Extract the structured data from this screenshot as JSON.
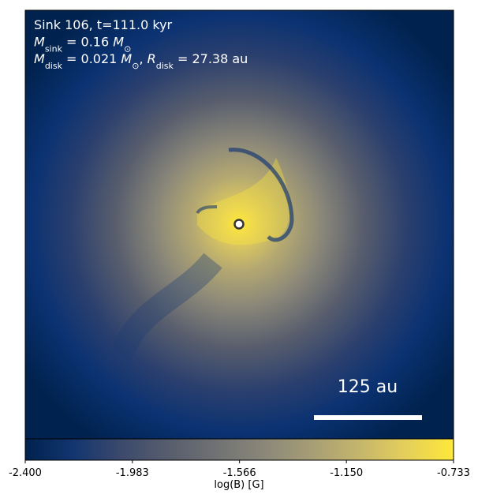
{
  "chart_data": {
    "type": "image",
    "annotations": [
      [
        {
          "text": "Sink 106, t=111.0 kyr"
        }
      ],
      [
        {
          "text": "M",
          "italic": true
        },
        {
          "text": "sink",
          "sub": true
        },
        {
          "text": " = 0.16 "
        },
        {
          "text": "M",
          "italic": true
        },
        {
          "text": "⊙",
          "sub": true
        }
      ],
      [
        {
          "text": "M",
          "italic": true
        },
        {
          "text": "disk",
          "sub": true
        },
        {
          "text": " = 0.021 "
        },
        {
          "text": "M",
          "italic": true
        },
        {
          "text": "⊙",
          "sub": true
        },
        {
          "text": ", "
        },
        {
          "text": "R",
          "italic": true
        },
        {
          "text": "disk",
          "sub": true
        },
        {
          "text": " = 27.38 au"
        }
      ]
    ],
    "scale_bar": "125 au",
    "colorbar": {
      "label": "log(B) [G]",
      "clim": [
        -2.4,
        -0.733
      ],
      "ticks": [
        {
          "value": -2.4,
          "label": "-2.400"
        },
        -1.983,
        -1.566,
        {
          "value": -1.15,
          "label": "-1.150"
        },
        -0.733
      ],
      "colormap": [
        "#00224e",
        "#123570",
        "#3b496c",
        "#575d6d",
        "#707173",
        "#8a8779",
        "#a69d75",
        "#c4b56c",
        "#e4cf5b",
        "#fee838"
      ]
    }
  }
}
